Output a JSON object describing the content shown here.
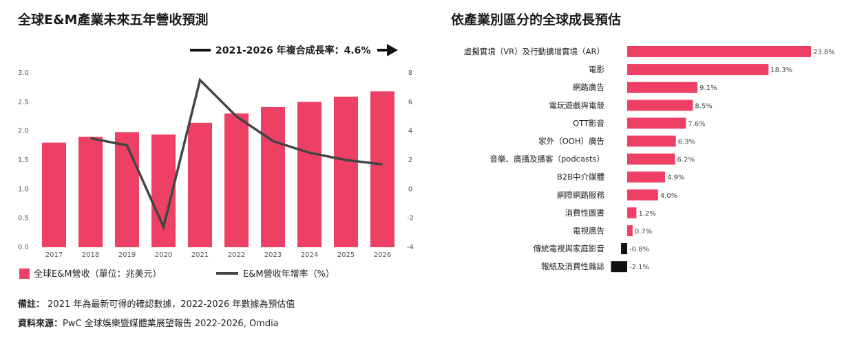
{
  "left_chart": {
    "title": "全球E&M產業未來五年營收預測",
    "cagr_label": "2021-2026 年複合成長率：4.6%",
    "legend_bar": "全球E&M營收（單位：兆美元）",
    "legend_line": "E&M營收年增率（%）"
  },
  "right_chart": {
    "title": "依產業別區分的全球成長預估"
  },
  "notes": {
    "note_label": "備註：",
    "note_text": "2021 年為最新可得的確認數據，2022-2026 年數據為預估值",
    "source_label": "資料來源：",
    "source_text": "PwC 全球娛樂暨媒體業展望報告 2022-2026, Omdia"
  },
  "colors": {
    "bar": "#ee4065",
    "line": "#444444",
    "negative": "#111111"
  },
  "chart_data": [
    {
      "type": "bar",
      "categories": [
        "2017",
        "2018",
        "2019",
        "2020",
        "2021",
        "2022",
        "2023",
        "2024",
        "2025",
        "2026"
      ],
      "series": [
        {
          "name": "全球E&M營收（單位：兆美元）",
          "type": "bar",
          "axis": "left",
          "values": [
            1.8,
            1.9,
            1.98,
            1.94,
            2.14,
            2.3,
            2.41,
            2.5,
            2.59,
            2.68
          ]
        },
        {
          "name": "E&M營收年增率（%）",
          "type": "line",
          "axis": "right",
          "values": [
            null,
            3.5,
            3.0,
            -2.6,
            7.5,
            5.0,
            3.3,
            2.5,
            2.0,
            1.7
          ]
        }
      ],
      "yticks_left": [
        "0.0",
        "0.5",
        "1.0",
        "1.5",
        "2.0",
        "2.5",
        "3.0"
      ],
      "ylim_left": [
        0,
        3.0
      ],
      "yticks_right": [
        "-4",
        "-2",
        "0",
        "2",
        "4",
        "6",
        "8"
      ],
      "ylim_right": [
        -4,
        8
      ],
      "grid": false,
      "legend": "bottom"
    },
    {
      "type": "bar",
      "orientation": "horizontal",
      "categories": [
        "虛擬實境（VR）及行動擴增實境（AR）",
        "電影",
        "網路廣告",
        "電玩遊戲與電競",
        "OTT影音",
        "家外（OOH）廣告",
        "音樂、廣播及播客（podcasts）",
        "B2B中介媒體",
        "網際網路服務",
        "消費性圖書",
        "電視廣告",
        "傳統電視與家庭影音",
        "報紙及消費性雜誌"
      ],
      "values": [
        23.8,
        18.3,
        9.1,
        8.5,
        7.6,
        6.3,
        6.2,
        4.9,
        4.0,
        1.2,
        0.7,
        -0.8,
        -2.1
      ],
      "labels": [
        "23.8%",
        "18.3%",
        "9.1%",
        "8.5%",
        "7.6%",
        "6.3%",
        "6.2%",
        "4.9%",
        "4.0%",
        "1.2%",
        "0.7%",
        "-0.8%",
        "-2.1%"
      ],
      "grid": false
    }
  ]
}
